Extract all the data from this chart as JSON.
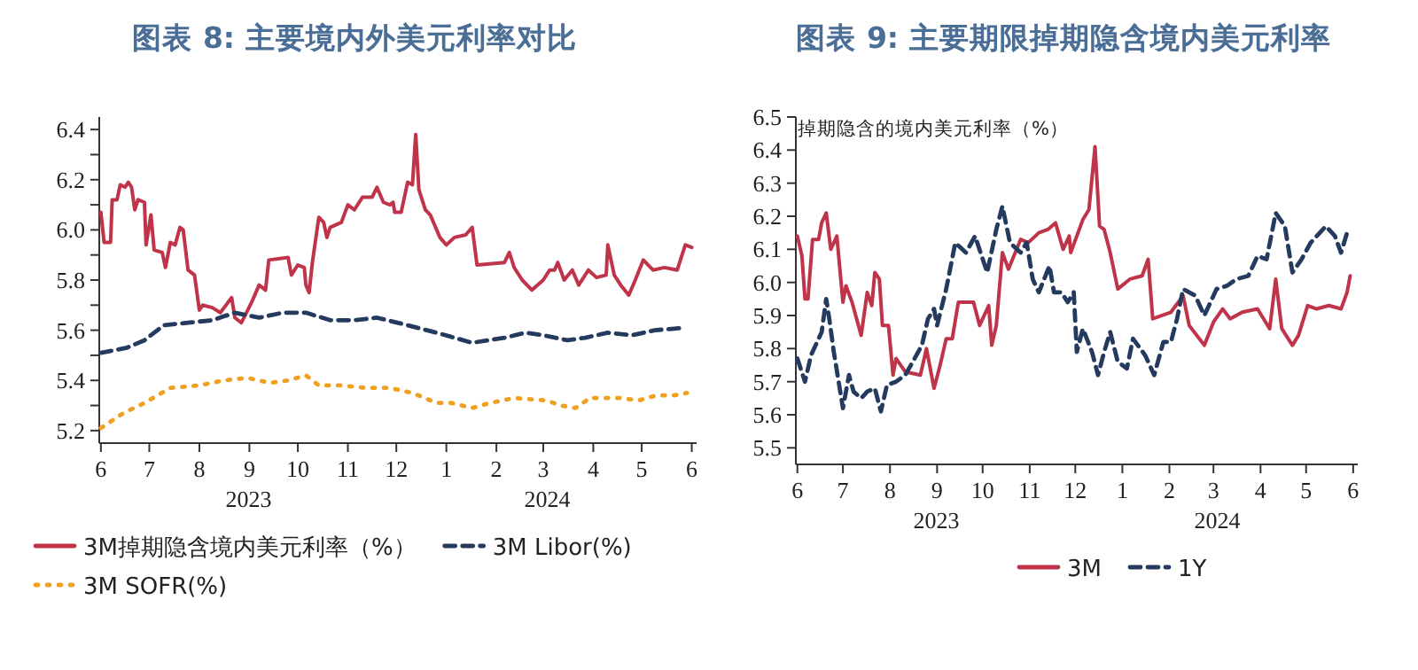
{
  "chart_data": [
    {
      "type": "line",
      "title": "图表 8: 主要境内外美元利率对比",
      "legend": "bottom",
      "marker": "none",
      "grid": false,
      "xlim": [
        "2023-05-31",
        "2024-06-04"
      ],
      "xticks": [
        {
          "value": "2023-06-01",
          "label": "6"
        },
        {
          "value": "2023-07-01",
          "label": "7"
        },
        {
          "value": "2023-08-01",
          "label": "8"
        },
        {
          "value": "2023-09-01",
          "label": "9"
        },
        {
          "value": "2023-10-01",
          "label": "10"
        },
        {
          "value": "2023-11-01",
          "label": "11"
        },
        {
          "value": "2023-12-01",
          "label": "12"
        },
        {
          "value": "2024-01-01",
          "label": "1"
        },
        {
          "value": "2024-02-01",
          "label": "2"
        },
        {
          "value": "2024-03-01",
          "label": "3"
        },
        {
          "value": "2024-04-01",
          "label": "4"
        },
        {
          "value": "2024-05-01",
          "label": "5"
        },
        {
          "value": "2024-06-01",
          "label": "6"
        }
      ],
      "annotations": [
        "2023",
        "2024"
      ],
      "ylim": [
        5.15,
        6.45
      ],
      "yticks": [
        5.2,
        {
          "value": 5.3,
          "label": null
        },
        5.4,
        {
          "value": 5.5,
          "label": null
        },
        5.6,
        {
          "value": 5.7,
          "label": null
        },
        5.8,
        {
          "value": 5.9,
          "label": null
        },
        {
          "value": 6.0,
          "label": "6.0"
        },
        {
          "value": 6.1,
          "label": null
        },
        6.2,
        {
          "value": 6.3,
          "label": null
        },
        6.4
      ],
      "series": [
        {
          "name": "3M掉期隐含境内美元利率（%）",
          "color": "#c0344a",
          "line_style": "solid",
          "x": [
            "2023-06-01",
            "2023-06-03",
            "2023-06-07",
            "2023-06-08",
            "2023-06-11",
            "2023-06-13",
            "2023-06-16",
            "2023-06-18",
            "2023-06-20",
            "2023-06-22",
            "2023-06-24",
            "2023-06-28",
            "2023-06-29",
            "2023-07-02",
            "2023-07-04",
            "2023-07-09",
            "2023-07-11",
            "2023-07-14",
            "2023-07-17",
            "2023-07-20",
            "2023-07-22",
            "2023-07-25",
            "2023-07-29",
            "2023-08-01",
            "2023-08-03",
            "2023-08-09",
            "2023-08-14",
            "2023-08-21",
            "2023-08-23",
            "2023-08-27",
            "2023-08-31",
            "2023-09-03",
            "2023-09-07",
            "2023-09-11",
            "2023-09-13",
            "2023-09-25",
            "2023-09-27",
            "2023-10-01",
            "2023-10-05",
            "2023-10-06",
            "2023-10-08",
            "2023-10-10",
            "2023-10-14",
            "2023-10-17",
            "2023-10-19",
            "2023-10-21",
            "2023-10-28",
            "2023-11-01",
            "2023-11-05",
            "2023-11-10",
            "2023-11-16",
            "2023-11-19",
            "2023-11-23",
            "2023-11-27",
            "2023-11-29",
            "2023-11-30",
            "2023-12-04",
            "2023-12-08",
            "2023-12-11",
            "2023-12-13",
            "2023-12-15",
            "2023-12-19",
            "2023-12-22",
            "2023-12-28",
            "2024-01-01",
            "2024-01-06",
            "2024-01-13",
            "2024-01-17",
            "2024-01-20",
            "2024-02-06",
            "2024-02-09",
            "2024-02-12",
            "2024-02-17",
            "2024-02-23",
            "2024-03-01",
            "2024-03-05",
            "2024-03-08",
            "2024-03-10",
            "2024-03-14",
            "2024-03-19",
            "2024-03-23",
            "2024-03-29",
            "2024-04-03",
            "2024-04-09",
            "2024-04-10",
            "2024-04-14",
            "2024-04-18",
            "2024-04-23",
            "2024-04-27",
            "2024-05-02",
            "2024-05-08",
            "2024-05-15",
            "2024-05-23",
            "2024-05-28",
            "2024-06-01"
          ],
          "values": [
            6.07,
            5.95,
            5.95,
            6.12,
            6.12,
            6.18,
            6.17,
            6.19,
            6.17,
            6.08,
            6.12,
            6.11,
            5.94,
            6.06,
            5.92,
            5.91,
            5.85,
            5.95,
            5.94,
            6.01,
            6.0,
            5.84,
            5.82,
            5.68,
            5.7,
            5.69,
            5.67,
            5.73,
            5.65,
            5.63,
            5.68,
            5.72,
            5.78,
            5.76,
            5.88,
            5.89,
            5.82,
            5.86,
            5.85,
            5.78,
            5.75,
            5.87,
            6.05,
            6.03,
            5.97,
            6.01,
            6.03,
            6.1,
            6.08,
            6.13,
            6.13,
            6.17,
            6.11,
            6.1,
            6.11,
            6.07,
            6.07,
            6.19,
            6.18,
            6.38,
            6.16,
            6.08,
            6.06,
            5.97,
            5.94,
            5.97,
            5.98,
            6.01,
            5.86,
            5.87,
            5.91,
            5.85,
            5.8,
            5.76,
            5.8,
            5.84,
            5.84,
            5.87,
            5.8,
            5.84,
            5.78,
            5.84,
            5.81,
            5.82,
            5.94,
            5.82,
            5.78,
            5.74,
            5.8,
            5.88,
            5.84,
            5.85,
            5.84,
            5.94,
            5.93
          ]
        },
        {
          "name": "3M Libor(%)",
          "color": "#243a5e",
          "line_style": "dashed",
          "x": [
            "2023-06-01",
            "2023-06-17",
            "2023-06-28",
            "2023-07-10",
            "2023-07-25",
            "2023-08-09",
            "2023-08-23",
            "2023-09-07",
            "2023-09-22",
            "2023-10-06",
            "2023-10-21",
            "2023-11-05",
            "2023-11-19",
            "2023-12-08",
            "2023-12-26",
            "2024-01-17",
            "2024-02-06",
            "2024-02-19",
            "2024-03-01",
            "2024-03-16",
            "2024-03-27",
            "2024-04-10",
            "2024-04-25",
            "2024-05-09",
            "2024-05-28"
          ],
          "values": [
            5.51,
            5.53,
            5.56,
            5.62,
            5.63,
            5.64,
            5.67,
            5.65,
            5.67,
            5.67,
            5.64,
            5.64,
            5.65,
            5.62,
            5.59,
            5.55,
            5.57,
            5.59,
            5.58,
            5.56,
            5.57,
            5.59,
            5.58,
            5.6,
            5.61
          ]
        },
        {
          "name": "3M SOFR(%)",
          "color": "#f0a020",
          "line_style": "dotted",
          "x": [
            "2023-06-01",
            "2023-06-15",
            "2023-06-28",
            "2023-07-14",
            "2023-08-01",
            "2023-08-16",
            "2023-08-31",
            "2023-09-14",
            "2023-09-25",
            "2023-10-06",
            "2023-10-14",
            "2023-10-28",
            "2023-11-12",
            "2023-11-27",
            "2023-12-11",
            "2023-12-26",
            "2024-01-04",
            "2024-01-17",
            "2024-01-28",
            "2024-02-12",
            "2024-03-03",
            "2024-03-12",
            "2024-03-21",
            "2024-03-30",
            "2024-04-18",
            "2024-04-29",
            "2024-05-10",
            "2024-05-21",
            "2024-05-29"
          ],
          "values": [
            5.21,
            5.27,
            5.31,
            5.37,
            5.38,
            5.4,
            5.41,
            5.39,
            5.4,
            5.42,
            5.38,
            5.38,
            5.37,
            5.37,
            5.35,
            5.31,
            5.31,
            5.29,
            5.31,
            5.33,
            5.32,
            5.3,
            5.29,
            5.33,
            5.33,
            5.32,
            5.34,
            5.34,
            5.35
          ]
        }
      ]
    },
    {
      "type": "line",
      "title": "图表 9: 主要期限掉期隐含境内美元利率",
      "ylabel": "掉期隐含的境内美元利率（%）",
      "legend": "bottom",
      "marker": "none",
      "grid": false,
      "xlim": [
        "2023-05-31",
        "2024-06-04"
      ],
      "xticks": [
        {
          "value": "2023-06-01",
          "label": "6"
        },
        {
          "value": "2023-07-01",
          "label": "7"
        },
        {
          "value": "2023-08-01",
          "label": "8"
        },
        {
          "value": "2023-09-01",
          "label": "9"
        },
        {
          "value": "2023-10-01",
          "label": "10"
        },
        {
          "value": "2023-11-01",
          "label": "11"
        },
        {
          "value": "2023-12-01",
          "label": "12"
        },
        {
          "value": "2024-01-01",
          "label": "1"
        },
        {
          "value": "2024-02-01",
          "label": "2"
        },
        {
          "value": "2024-03-01",
          "label": "3"
        },
        {
          "value": "2024-04-01",
          "label": "4"
        },
        {
          "value": "2024-05-01",
          "label": "5"
        },
        {
          "value": "2024-06-01",
          "label": "6"
        }
      ],
      "annotations": [
        "2023",
        "2024"
      ],
      "ylim": [
        5.45,
        6.5
      ],
      "yticks": [
        5.5,
        5.6,
        5.7,
        5.8,
        5.9,
        {
          "value": 6.0,
          "label": "6.0"
        },
        6.1,
        6.2,
        6.3,
        6.4,
        6.5
      ],
      "series": [
        {
          "name": "3M",
          "color": "#c0344a",
          "line_style": "solid",
          "x": [
            "2023-06-01",
            "2023-06-04",
            "2023-06-06",
            "2023-06-08",
            "2023-06-11",
            "2023-06-15",
            "2023-06-17",
            "2023-06-20",
            "2023-06-23",
            "2023-06-27",
            "2023-07-01",
            "2023-07-03",
            "2023-07-07",
            "2023-07-13",
            "2023-07-17",
            "2023-07-20",
            "2023-07-22",
            "2023-07-25",
            "2023-07-27",
            "2023-07-31",
            "2023-08-03",
            "2023-08-05",
            "2023-08-11",
            "2023-08-21",
            "2023-08-25",
            "2023-08-30",
            "2023-09-03",
            "2023-09-07",
            "2023-09-11",
            "2023-09-15",
            "2023-09-25",
            "2023-09-29",
            "2023-10-05",
            "2023-10-07",
            "2023-10-10",
            "2023-10-14",
            "2023-10-18",
            "2023-10-26",
            "2023-10-31",
            "2023-11-07",
            "2023-11-13",
            "2023-11-18",
            "2023-11-23",
            "2023-11-27",
            "2023-11-28",
            "2023-12-02",
            "2023-12-06",
            "2023-12-10",
            "2023-12-14",
            "2023-12-17",
            "2023-12-20",
            "2023-12-24",
            "2023-12-29",
            "2024-01-06",
            "2024-01-14",
            "2024-01-18",
            "2024-01-21",
            "2024-02-02",
            "2024-02-10",
            "2024-02-14",
            "2024-02-24",
            "2024-03-01",
            "2024-03-07",
            "2024-03-12",
            "2024-03-20",
            "2024-03-30",
            "2024-04-07",
            "2024-04-11",
            "2024-04-15",
            "2024-04-22",
            "2024-04-26",
            "2024-05-02",
            "2024-05-08",
            "2024-05-16",
            "2024-05-24",
            "2024-05-28",
            "2024-05-30"
          ],
          "values": [
            6.14,
            6.08,
            5.95,
            5.95,
            6.13,
            6.13,
            6.18,
            6.21,
            6.1,
            6.14,
            5.94,
            5.99,
            5.94,
            5.84,
            5.97,
            5.93,
            6.03,
            6.01,
            5.87,
            5.87,
            5.72,
            5.77,
            5.73,
            5.72,
            5.8,
            5.68,
            5.75,
            5.83,
            5.83,
            5.94,
            5.94,
            5.87,
            5.93,
            5.81,
            5.87,
            6.09,
            6.04,
            6.13,
            6.12,
            6.15,
            6.16,
            6.18,
            6.1,
            6.14,
            6.09,
            6.14,
            6.19,
            6.22,
            6.41,
            6.17,
            6.16,
            6.09,
            5.98,
            6.01,
            6.02,
            6.07,
            5.89,
            5.91,
            5.96,
            5.87,
            5.81,
            5.88,
            5.92,
            5.89,
            5.91,
            5.92,
            5.86,
            6.01,
            5.86,
            5.81,
            5.84,
            5.93,
            5.92,
            5.93,
            5.92,
            5.97,
            6.02
          ]
        },
        {
          "name": "1Y",
          "color": "#243a5e",
          "line_style": "dashed",
          "x": [
            "2023-06-01",
            "2023-06-06",
            "2023-06-10",
            "2023-06-17",
            "2023-06-20",
            "2023-06-22",
            "2023-06-25",
            "2023-07-01",
            "2023-07-05",
            "2023-07-08",
            "2023-07-13",
            "2023-07-17",
            "2023-07-22",
            "2023-07-26",
            "2023-07-30",
            "2023-08-05",
            "2023-08-11",
            "2023-08-16",
            "2023-08-22",
            "2023-08-26",
            "2023-08-30",
            "2023-09-01",
            "2023-09-07",
            "2023-09-13",
            "2023-09-20",
            "2023-09-26",
            "2023-10-04",
            "2023-10-10",
            "2023-10-14",
            "2023-10-19",
            "2023-10-26",
            "2023-10-30",
            "2023-11-03",
            "2023-11-07",
            "2023-11-14",
            "2023-11-17",
            "2023-11-22",
            "2023-11-26",
            "2023-11-30",
            "2023-12-02",
            "2023-12-06",
            "2023-12-12",
            "2023-12-16",
            "2023-12-20",
            "2023-12-24",
            "2023-12-29",
            "2024-01-04",
            "2024-01-08",
            "2024-01-16",
            "2024-01-22",
            "2024-01-28",
            "2024-02-02",
            "2024-02-06",
            "2024-02-10",
            "2024-02-18",
            "2024-02-24",
            "2024-03-03",
            "2024-03-10",
            "2024-03-16",
            "2024-03-24",
            "2024-03-30",
            "2024-04-05",
            "2024-04-11",
            "2024-04-17",
            "2024-04-22",
            "2024-04-28",
            "2024-05-04",
            "2024-05-14",
            "2024-05-20",
            "2024-05-24",
            "2024-05-28"
          ],
          "values": [
            5.77,
            5.7,
            5.78,
            5.85,
            5.95,
            5.89,
            5.79,
            5.62,
            5.72,
            5.67,
            5.65,
            5.67,
            5.68,
            5.61,
            5.69,
            5.7,
            5.72,
            5.76,
            5.81,
            5.89,
            5.92,
            5.87,
            5.98,
            6.12,
            6.09,
            6.14,
            6.03,
            6.16,
            6.23,
            6.12,
            6.09,
            6.12,
            6.01,
            5.97,
            6.05,
            5.97,
            5.97,
            5.94,
            5.97,
            5.79,
            5.86,
            5.79,
            5.72,
            5.79,
            5.85,
            5.76,
            5.74,
            5.83,
            5.78,
            5.72,
            5.82,
            5.82,
            5.89,
            5.98,
            5.96,
            5.9,
            5.98,
            5.99,
            6.01,
            6.02,
            6.08,
            6.07,
            6.21,
            6.17,
            6.03,
            6.07,
            6.12,
            6.17,
            6.14,
            6.09,
            6.15
          ]
        }
      ]
    }
  ]
}
